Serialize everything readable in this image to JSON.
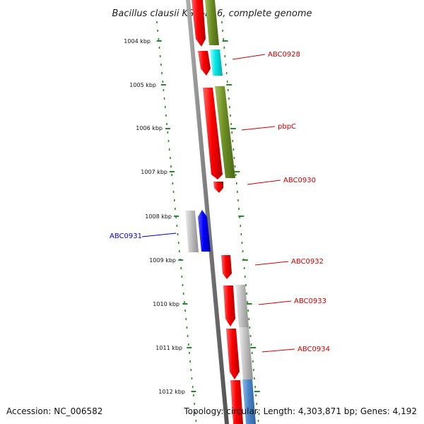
{
  "header": {
    "title": "Bacillus clausii KSM-K16, complete genome"
  },
  "footer": {
    "accession": "Accession: NC_006582",
    "summary": "Topology: circular; Length: 4,303,871 bp; Genes: 4,192"
  },
  "ruler": {
    "labels": [
      "1004 kbp",
      "1005 kbp",
      "1006 kbp",
      "1007 kbp",
      "1008 kbp",
      "1009 kbp",
      "1010 kbp",
      "1011 kbp",
      "1012 kbp"
    ]
  },
  "gene_labels": [
    {
      "text": "ABC0928",
      "color": "#cc0000",
      "side": "right"
    },
    {
      "text": "pbpC",
      "color": "#cc0000",
      "side": "right"
    },
    {
      "text": "ABC0930",
      "color": "#cc0000",
      "side": "right"
    },
    {
      "text": "ABC0931",
      "color": "#0000cc",
      "side": "left"
    },
    {
      "text": "ABC0932",
      "color": "#cc0000",
      "side": "right"
    },
    {
      "text": "ABC0933",
      "color": "#cc0000",
      "side": "right"
    },
    {
      "text": "ABC0934",
      "color": "#cc0000",
      "side": "right"
    }
  ],
  "colors": {
    "cds_forward": "#ff0000",
    "cds_reverse": "#0000ff",
    "cog_olive": "#6b8e23",
    "cog_cyan": "#00e0e0",
    "cog_grey": "#bbbbbb",
    "cog_steelblue": "#4a86c8",
    "ruler_green": "#228b22",
    "backbone": "#808080"
  }
}
